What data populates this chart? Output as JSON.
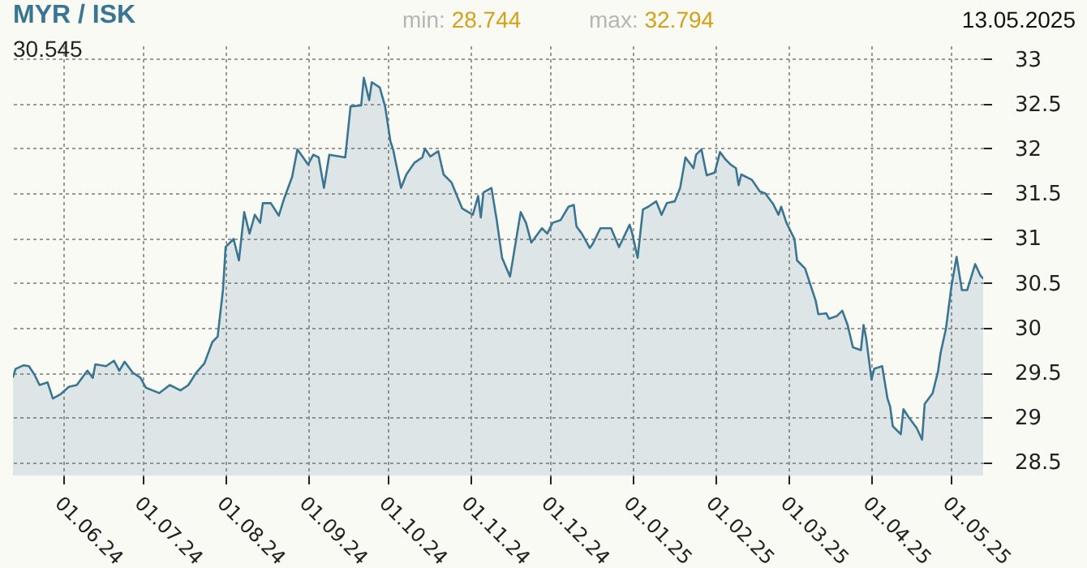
{
  "chart_data": {
    "type": "area",
    "title": "MYR / ISK",
    "annotations": [
      "min: 28.744",
      "max: 32.794",
      "13.05.2025",
      "30.545"
    ],
    "x": [
      "2024-05-13",
      "2024-05-14",
      "2024-05-17",
      "2024-05-19",
      "2024-05-21",
      "2024-05-23",
      "2024-05-26",
      "2024-05-28",
      "2024-05-31",
      "2024-06-03",
      "2024-06-06",
      "2024-06-10",
      "2024-06-12",
      "2024-06-13",
      "2024-06-17",
      "2024-06-20",
      "2024-06-22",
      "2024-06-24",
      "2024-06-27",
      "2024-06-30",
      "2024-07-02",
      "2024-07-07",
      "2024-07-11",
      "2024-07-15",
      "2024-07-18",
      "2024-07-21",
      "2024-07-24",
      "2024-07-27",
      "2024-07-29",
      "2024-07-31",
      "2024-08-01",
      "2024-08-04",
      "2024-08-06",
      "2024-08-08",
      "2024-08-10",
      "2024-08-12",
      "2024-08-14",
      "2024-08-15",
      "2024-08-18",
      "2024-08-21",
      "2024-08-23",
      "2024-08-26",
      "2024-08-28",
      "2024-09-01",
      "2024-09-03",
      "2024-09-05",
      "2024-09-07",
      "2024-09-09",
      "2024-09-15",
      "2024-09-17",
      "2024-09-21",
      "2024-09-22",
      "2024-09-24",
      "2024-09-25",
      "2024-09-28",
      "2024-09-30",
      "2024-10-02",
      "2024-10-03",
      "2024-10-06",
      "2024-10-08",
      "2024-10-11",
      "2024-10-14",
      "2024-10-15",
      "2024-10-17",
      "2024-10-20",
      "2024-10-22",
      "2024-10-25",
      "2024-10-29",
      "2024-11-02",
      "2024-11-04",
      "2024-11-05",
      "2024-11-06",
      "2024-11-09",
      "2024-11-11",
      "2024-11-13",
      "2024-11-16",
      "2024-11-20",
      "2024-11-22",
      "2024-11-24",
      "2024-11-28",
      "2024-11-30",
      "2024-12-02",
      "2024-12-05",
      "2024-12-08",
      "2024-12-10",
      "2024-12-11",
      "2024-12-13",
      "2024-12-16",
      "2024-12-17",
      "2024-12-20",
      "2024-12-24",
      "2024-12-27",
      "2024-12-31",
      "2025-01-01",
      "2025-01-03",
      "2025-01-05",
      "2025-01-07",
      "2025-01-10",
      "2025-01-12",
      "2025-01-14",
      "2025-01-17",
      "2025-01-19",
      "2025-01-21",
      "2025-01-24",
      "2025-01-25",
      "2025-01-27",
      "2025-01-29",
      "2025-02-01",
      "2025-02-03",
      "2025-02-05",
      "2025-02-07",
      "2025-02-09",
      "2025-02-10",
      "2025-02-11",
      "2025-02-15",
      "2025-02-18",
      "2025-02-20",
      "2025-02-23",
      "2025-02-25",
      "2025-02-26",
      "2025-02-28",
      "2025-03-03",
      "2025-03-04",
      "2025-03-07",
      "2025-03-09",
      "2025-03-11",
      "2025-03-12",
      "2025-03-15",
      "2025-03-16",
      "2025-03-19",
      "2025-03-21",
      "2025-03-23",
      "2025-03-25",
      "2025-03-28",
      "2025-03-29",
      "2025-03-30",
      "2025-04-01",
      "2025-04-02",
      "2025-04-05",
      "2025-04-07",
      "2025-04-08",
      "2025-04-09",
      "2025-04-12",
      "2025-04-13",
      "2025-04-15",
      "2025-04-18",
      "2025-04-20",
      "2025-04-21",
      "2025-04-24",
      "2025-04-26",
      "2025-04-27",
      "2025-04-29",
      "2025-05-01",
      "2025-05-03",
      "2025-05-05",
      "2025-05-07",
      "2025-05-10",
      "2025-05-12",
      "2025-05-13"
    ],
    "series": [
      {
        "color": "#3a7592",
        "values": [
          29.45,
          29.54,
          29.58,
          29.57,
          29.48,
          29.36,
          29.39,
          29.21,
          29.26,
          29.34,
          29.36,
          29.52,
          29.44,
          29.59,
          29.57,
          29.63,
          29.52,
          29.62,
          29.5,
          29.44,
          29.33,
          29.27,
          29.36,
          29.3,
          29.36,
          29.5,
          29.6,
          29.84,
          29.9,
          30.42,
          30.9,
          30.99,
          30.75,
          31.29,
          31.05,
          31.26,
          31.17,
          31.39,
          31.39,
          31.25,
          31.44,
          31.68,
          31.99,
          31.82,
          31.93,
          31.9,
          31.56,
          31.93,
          31.9,
          32.47,
          32.48,
          32.79,
          32.54,
          32.74,
          32.68,
          32.47,
          32.08,
          31.99,
          31.56,
          31.71,
          31.84,
          31.9,
          32.0,
          31.91,
          31.97,
          31.71,
          31.62,
          31.33,
          31.26,
          31.47,
          31.23,
          31.51,
          31.56,
          31.2,
          30.78,
          30.57,
          31.29,
          31.17,
          30.95,
          31.11,
          31.05,
          31.17,
          31.2,
          31.35,
          31.37,
          31.13,
          31.05,
          30.89,
          30.93,
          31.11,
          31.11,
          30.9,
          31.15,
          31.05,
          30.78,
          31.32,
          31.35,
          31.41,
          31.26,
          31.39,
          31.41,
          31.56,
          31.9,
          31.78,
          31.93,
          31.99,
          31.7,
          31.73,
          31.96,
          31.88,
          31.82,
          31.78,
          31.59,
          31.71,
          31.65,
          31.52,
          31.5,
          31.38,
          31.26,
          31.35,
          31.17,
          30.99,
          30.75,
          30.66,
          30.48,
          30.3,
          30.15,
          30.16,
          30.1,
          30.13,
          30.19,
          30.03,
          29.78,
          29.75,
          30.03,
          29.88,
          29.42,
          29.54,
          29.57,
          29.21,
          29.12,
          28.9,
          28.81,
          29.09,
          29.0,
          28.88,
          28.75,
          29.15,
          29.27,
          29.51,
          29.72,
          29.99,
          30.45,
          30.79,
          30.42,
          30.42,
          30.71,
          30.58,
          30.55
        ]
      }
    ],
    "xlim": [
      "2024-05-13",
      "2025-05-13"
    ],
    "xticks": [
      {
        "value": "2024-06-01",
        "label": "01.06.24"
      },
      {
        "value": "2024-07-01",
        "label": "01.07.24"
      },
      {
        "value": "2024-08-01",
        "label": "01.08.24"
      },
      {
        "value": "2024-09-01",
        "label": "01.09.24"
      },
      {
        "value": "2024-10-01",
        "label": "01.10.24"
      },
      {
        "value": "2024-11-01",
        "label": "01.11.24"
      },
      {
        "value": "2024-12-01",
        "label": "01.12.24"
      },
      {
        "value": "2025-01-01",
        "label": "01.01.25"
      },
      {
        "value": "2025-02-01",
        "label": "01.02.25"
      },
      {
        "value": "2025-03-01",
        "label": "01.03.25"
      },
      {
        "value": "2025-04-01",
        "label": "01.04.25"
      },
      {
        "value": "2025-05-01",
        "label": "01.05.25"
      }
    ],
    "ylim": [
      28.35,
      33.15
    ],
    "yticks": [
      28.5,
      29,
      29.5,
      30,
      30.5,
      31,
      31.5,
      32,
      32.5,
      33
    ],
    "grid": true,
    "line_style": "solid"
  }
}
